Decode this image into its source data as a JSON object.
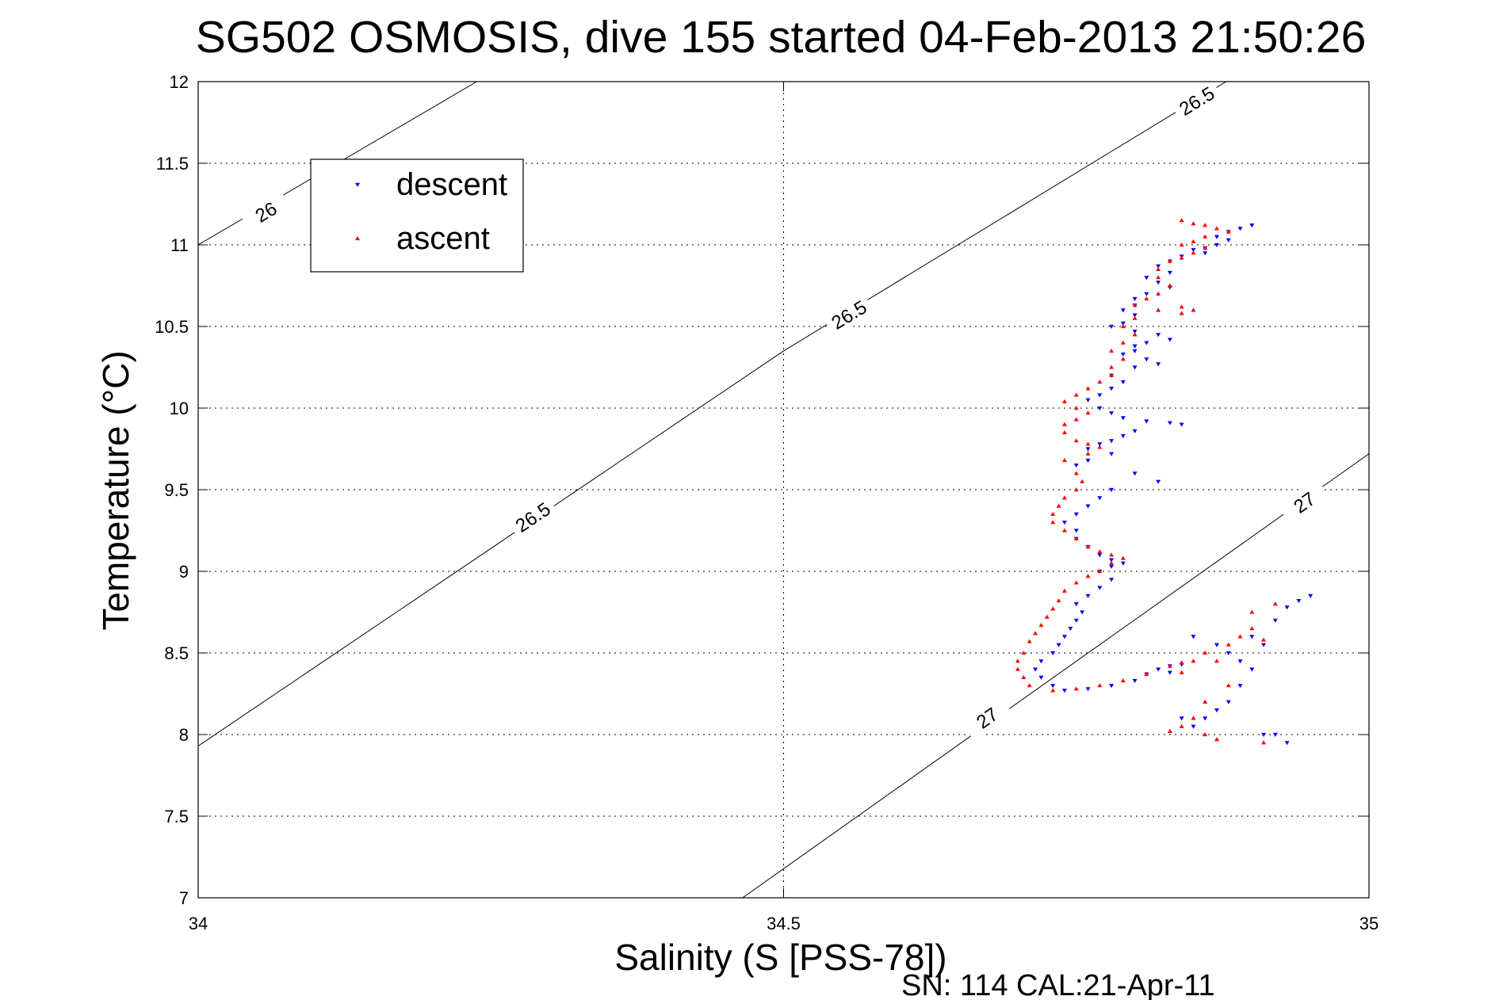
{
  "chart_data": {
    "type": "scatter",
    "title": "SG502 OSMOSIS, dive 155 started 04-Feb-2013 21:50:26",
    "xlabel": "Salinity (S [PSS-78])",
    "ylabel": "Temperature (°C)",
    "footnote": "SN: 114  CAL:21-Apr-11",
    "xlim": [
      34,
      35
    ],
    "ylim": [
      7,
      12
    ],
    "x_ticks": [
      34,
      34.5,
      35
    ],
    "x_tick_labels": [
      "34",
      "34.5",
      "35"
    ],
    "y_ticks": [
      7,
      7.5,
      8,
      8.5,
      9,
      9.5,
      10,
      10.5,
      11,
      11.5,
      12
    ],
    "y_tick_labels": [
      "7",
      "7.5",
      "8",
      "8.5",
      "9",
      "9.5",
      "10",
      "10.5",
      "11",
      "11.5",
      "12"
    ],
    "grid": true,
    "legend_position": "top-left",
    "density_contours": [
      {
        "label": "26",
        "points": [
          [
            34.0,
            11.0
          ],
          [
            34.238,
            12.0
          ]
        ],
        "label_positions": [
          [
            34.058,
            11.2
          ]
        ]
      },
      {
        "label": "26.5",
        "points": [
          [
            34.0,
            7.93
          ],
          [
            34.5,
            10.35
          ],
          [
            34.878,
            12.0
          ]
        ],
        "label_positions": [
          [
            34.286,
            9.33
          ],
          [
            34.556,
            10.57
          ],
          [
            34.853,
            11.88
          ]
        ]
      },
      {
        "label": "27",
        "points": [
          [
            34.465,
            7.0
          ],
          [
            35.0,
            9.72
          ]
        ],
        "label_positions": [
          [
            34.674,
            8.1
          ],
          [
            34.945,
            9.42
          ]
        ]
      }
    ],
    "series": [
      {
        "name": "descent",
        "color": "#0000ff",
        "marker": "triangle-down",
        "points": [
          [
            34.9,
            11.12
          ],
          [
            34.89,
            11.1
          ],
          [
            34.88,
            11.08
          ],
          [
            34.87,
            11.05
          ],
          [
            34.88,
            11.03
          ],
          [
            34.87,
            11.0
          ],
          [
            34.86,
            10.98
          ],
          [
            34.85,
            10.97
          ],
          [
            34.86,
            10.95
          ],
          [
            34.84,
            10.93
          ],
          [
            34.83,
            10.9
          ],
          [
            34.82,
            10.87
          ],
          [
            34.83,
            10.83
          ],
          [
            34.81,
            10.8
          ],
          [
            34.82,
            10.77
          ],
          [
            34.83,
            10.74
          ],
          [
            34.81,
            10.7
          ],
          [
            34.8,
            10.67
          ],
          [
            34.8,
            10.63
          ],
          [
            34.79,
            10.6
          ],
          [
            34.8,
            10.57
          ],
          [
            34.79,
            10.52
          ],
          [
            34.78,
            10.5
          ],
          [
            34.8,
            10.47
          ],
          [
            34.82,
            10.45
          ],
          [
            34.83,
            10.42
          ],
          [
            34.81,
            10.4
          ],
          [
            34.8,
            10.38
          ],
          [
            34.8,
            10.35
          ],
          [
            34.79,
            10.33
          ],
          [
            34.81,
            10.3
          ],
          [
            34.82,
            10.27
          ],
          [
            34.8,
            10.25
          ],
          [
            34.78,
            10.2
          ],
          [
            34.79,
            10.16
          ],
          [
            34.78,
            10.12
          ],
          [
            34.77,
            10.08
          ],
          [
            34.76,
            10.05
          ],
          [
            34.77,
            10.0
          ],
          [
            34.78,
            9.97
          ],
          [
            34.79,
            9.94
          ],
          [
            34.81,
            9.92
          ],
          [
            34.83,
            9.91
          ],
          [
            34.84,
            9.9
          ],
          [
            34.8,
            9.86
          ],
          [
            34.79,
            9.83
          ],
          [
            34.78,
            9.8
          ],
          [
            34.77,
            9.78
          ],
          [
            34.76,
            9.75
          ],
          [
            34.78,
            9.72
          ],
          [
            34.76,
            9.68
          ],
          [
            34.75,
            9.65
          ],
          [
            34.8,
            9.6
          ],
          [
            34.82,
            9.55
          ],
          [
            34.78,
            9.5
          ],
          [
            34.77,
            9.45
          ],
          [
            34.76,
            9.4
          ],
          [
            34.75,
            9.35
          ],
          [
            34.74,
            9.3
          ],
          [
            34.75,
            9.25
          ],
          [
            34.75,
            9.2
          ],
          [
            34.76,
            9.15
          ],
          [
            34.77,
            9.1
          ],
          [
            34.78,
            9.07
          ],
          [
            34.79,
            9.05
          ],
          [
            34.78,
            9.03
          ],
          [
            34.77,
            9.0
          ],
          [
            34.78,
            8.95
          ],
          [
            34.77,
            8.9
          ],
          [
            34.76,
            8.85
          ],
          [
            34.75,
            8.8
          ],
          [
            34.755,
            8.75
          ],
          [
            34.75,
            8.7
          ],
          [
            34.745,
            8.65
          ],
          [
            34.74,
            8.6
          ],
          [
            34.735,
            8.55
          ],
          [
            34.73,
            8.5
          ],
          [
            34.72,
            8.45
          ],
          [
            34.715,
            8.4
          ],
          [
            34.72,
            8.35
          ],
          [
            34.73,
            8.3
          ],
          [
            34.74,
            8.27
          ],
          [
            34.76,
            8.28
          ],
          [
            34.78,
            8.3
          ],
          [
            34.8,
            8.33
          ],
          [
            34.81,
            8.37
          ],
          [
            34.82,
            8.4
          ],
          [
            34.83,
            8.42
          ],
          [
            34.84,
            8.43
          ],
          [
            34.83,
            8.38
          ],
          [
            34.85,
            8.6
          ],
          [
            34.87,
            8.55
          ],
          [
            34.88,
            8.5
          ],
          [
            34.89,
            8.45
          ],
          [
            34.9,
            8.6
          ],
          [
            34.91,
            8.55
          ],
          [
            34.92,
            8.7
          ],
          [
            34.93,
            8.78
          ],
          [
            34.94,
            8.82
          ],
          [
            34.95,
            8.85
          ],
          [
            34.9,
            8.4
          ],
          [
            34.89,
            8.3
          ],
          [
            34.88,
            8.2
          ],
          [
            34.87,
            8.15
          ],
          [
            34.86,
            8.1
          ],
          [
            34.85,
            8.05
          ],
          [
            34.84,
            8.1
          ],
          [
            34.91,
            8.0
          ],
          [
            34.93,
            7.95
          ],
          [
            34.92,
            8.0
          ]
        ]
      },
      {
        "name": "ascent",
        "color": "#ff0000",
        "marker": "triangle-up",
        "points": [
          [
            34.84,
            11.15
          ],
          [
            34.85,
            11.13
          ],
          [
            34.86,
            11.12
          ],
          [
            34.87,
            11.1
          ],
          [
            34.88,
            11.08
          ],
          [
            34.86,
            11.05
          ],
          [
            34.85,
            11.02
          ],
          [
            34.84,
            11.0
          ],
          [
            34.86,
            10.98
          ],
          [
            34.85,
            10.95
          ],
          [
            34.84,
            10.92
          ],
          [
            34.83,
            10.9
          ],
          [
            34.82,
            10.85
          ],
          [
            34.82,
            10.8
          ],
          [
            34.83,
            10.75
          ],
          [
            34.82,
            10.7
          ],
          [
            34.81,
            10.67
          ],
          [
            34.8,
            10.63
          ],
          [
            34.82,
            10.6
          ],
          [
            34.84,
            10.62
          ],
          [
            34.85,
            10.6
          ],
          [
            34.84,
            10.58
          ],
          [
            34.8,
            10.55
          ],
          [
            34.79,
            10.5
          ],
          [
            34.8,
            10.45
          ],
          [
            34.79,
            10.4
          ],
          [
            34.78,
            10.35
          ],
          [
            34.79,
            10.3
          ],
          [
            34.78,
            10.25
          ],
          [
            34.78,
            10.2
          ],
          [
            34.77,
            10.16
          ],
          [
            34.76,
            10.12
          ],
          [
            34.75,
            10.08
          ],
          [
            34.74,
            10.04
          ],
          [
            34.75,
            10.0
          ],
          [
            34.76,
            9.97
          ],
          [
            34.75,
            9.93
          ],
          [
            34.74,
            9.9
          ],
          [
            34.74,
            9.85
          ],
          [
            34.75,
            9.8
          ],
          [
            34.76,
            9.78
          ],
          [
            34.77,
            9.76
          ],
          [
            34.76,
            9.72
          ],
          [
            34.74,
            9.68
          ],
          [
            34.75,
            9.6
          ],
          [
            34.755,
            9.55
          ],
          [
            34.75,
            9.5
          ],
          [
            34.74,
            9.45
          ],
          [
            34.735,
            9.4
          ],
          [
            34.73,
            9.35
          ],
          [
            34.73,
            9.3
          ],
          [
            34.74,
            9.25
          ],
          [
            34.75,
            9.2
          ],
          [
            34.76,
            9.15
          ],
          [
            34.77,
            9.12
          ],
          [
            34.78,
            9.1
          ],
          [
            34.79,
            9.08
          ],
          [
            34.78,
            9.05
          ],
          [
            34.77,
            9.0
          ],
          [
            34.76,
            8.97
          ],
          [
            34.75,
            8.93
          ],
          [
            34.74,
            8.88
          ],
          [
            34.735,
            8.82
          ],
          [
            34.73,
            8.77
          ],
          [
            34.725,
            8.72
          ],
          [
            34.72,
            8.67
          ],
          [
            34.715,
            8.62
          ],
          [
            34.71,
            8.57
          ],
          [
            34.705,
            8.5
          ],
          [
            34.7,
            8.45
          ],
          [
            34.7,
            8.4
          ],
          [
            34.705,
            8.35
          ],
          [
            34.71,
            8.3
          ],
          [
            34.73,
            8.27
          ],
          [
            34.75,
            8.28
          ],
          [
            34.77,
            8.3
          ],
          [
            34.79,
            8.33
          ],
          [
            34.81,
            8.37
          ],
          [
            34.83,
            8.42
          ],
          [
            34.84,
            8.44
          ],
          [
            34.84,
            8.38
          ],
          [
            34.85,
            8.45
          ],
          [
            34.86,
            8.5
          ],
          [
            34.87,
            8.45
          ],
          [
            34.88,
            8.55
          ],
          [
            34.89,
            8.6
          ],
          [
            34.9,
            8.65
          ],
          [
            34.91,
            8.58
          ],
          [
            34.92,
            8.8
          ],
          [
            34.9,
            8.75
          ],
          [
            34.88,
            8.3
          ],
          [
            34.86,
            8.2
          ],
          [
            34.85,
            8.1
          ],
          [
            34.84,
            8.05
          ],
          [
            34.83,
            8.02
          ],
          [
            34.87,
            7.97
          ],
          [
            34.91,
            7.95
          ],
          [
            34.86,
            8.0
          ]
        ]
      }
    ]
  }
}
